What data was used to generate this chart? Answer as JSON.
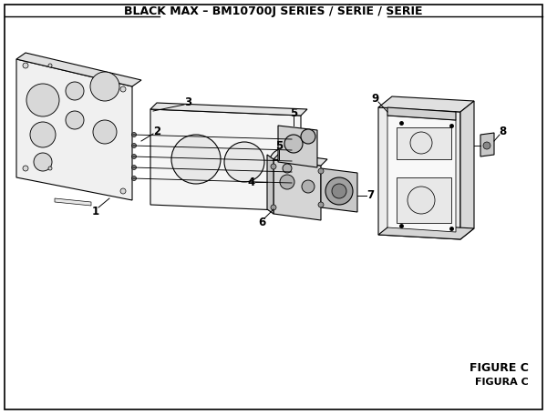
{
  "title": "BLACK MAX – BM10700J SERIES / SÉRIE / SERIE",
  "title_fontsize": 9,
  "figure_c_text": "FIGURE C",
  "figura_c_text": "FIGURA C",
  "bg_color": "#ffffff",
  "border_color": "#000000",
  "line_color": "#000000",
  "part_color": "#cccccc",
  "label_fontsize": 8.5,
  "small_fontsize": 7
}
